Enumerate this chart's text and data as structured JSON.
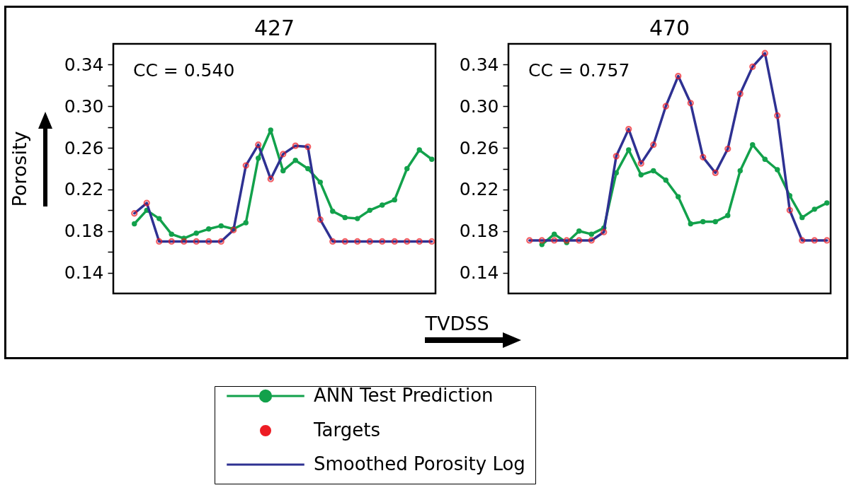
{
  "chart_data": [
    {
      "type": "line",
      "title": "427",
      "ylabel": "Porosity",
      "annotations": [
        "CC = 0.540"
      ],
      "categories": [
        null,
        null,
        null,
        null,
        null,
        null,
        null,
        null,
        null,
        null,
        null,
        null,
        null,
        null,
        null,
        null,
        null,
        null,
        null,
        null,
        null,
        null,
        null,
        null,
        null
      ],
      "series": [
        {
          "name": "ANN Test Prediction",
          "type": "line",
          "marker": "circle",
          "color": "#12a14b",
          "values": [
            0.187,
            0.2,
            0.192,
            0.177,
            0.173,
            0.178,
            0.182,
            0.185,
            0.182,
            0.188,
            0.25,
            0.277,
            0.238,
            0.248,
            0.24,
            0.227,
            0.199,
            0.193,
            0.192,
            0.2,
            0.205,
            0.21,
            0.24,
            0.258,
            0.249
          ]
        },
        {
          "name": "Targets",
          "type": "scatter",
          "marker": "circle",
          "color": "#ed1c24",
          "values": [
            0.197,
            0.207,
            0.17,
            0.17,
            0.17,
            0.17,
            0.17,
            0.17,
            0.181,
            0.243,
            0.263,
            0.23,
            0.254,
            0.262,
            0.261,
            0.191,
            0.17,
            0.17,
            0.17,
            0.17,
            0.17,
            0.17,
            0.17,
            0.17,
            0.17
          ]
        },
        {
          "name": "Smoothed Porosity Log",
          "type": "line",
          "color": "#2e3192",
          "values": [
            0.197,
            0.207,
            0.17,
            0.17,
            0.17,
            0.17,
            0.17,
            0.17,
            0.181,
            0.243,
            0.263,
            0.23,
            0.254,
            0.262,
            0.261,
            0.191,
            0.17,
            0.17,
            0.17,
            0.17,
            0.17,
            0.17,
            0.17,
            0.17,
            0.17
          ]
        }
      ],
      "ylim": [
        0.12,
        0.36
      ],
      "yticks": [
        0.14,
        {
          "value": 0.16,
          "label": null
        },
        0.18,
        {
          "value": 0.2,
          "label": null
        },
        0.22,
        {
          "value": 0.24,
          "label": null
        },
        0.26,
        {
          "value": 0.28,
          "label": null
        },
        {
          "value": 0.3,
          "label": "0.30"
        },
        {
          "value": 0.32,
          "label": null
        },
        0.34
      ],
      "tick_labels": "y",
      "legend": "bottom"
    },
    {
      "type": "line",
      "title": "470",
      "xlabel": "TVDSS",
      "annotations": [
        "CC = 0.757"
      ],
      "categories": [
        null,
        null,
        null,
        null,
        null,
        null,
        null,
        null,
        null,
        null,
        null,
        null,
        null,
        null,
        null,
        null,
        null,
        null,
        null,
        null,
        null,
        null,
        null,
        null,
        null
      ],
      "series": [
        {
          "name": "ANN Test Prediction",
          "type": "line",
          "marker": "circle",
          "color": "#12a14b",
          "values": [
            null,
            0.167,
            0.177,
            0.169,
            0.18,
            0.177,
            0.183,
            0.236,
            0.258,
            0.234,
            0.238,
            0.229,
            0.213,
            0.187,
            0.189,
            0.189,
            0.195,
            0.238,
            0.263,
            0.249,
            0.239,
            0.214,
            0.193,
            0.201,
            0.207
          ]
        },
        {
          "name": "Smoothed Porosity Log",
          "type": "line",
          "color": "#2e3192",
          "values": [
            0.171,
            0.171,
            0.171,
            0.171,
            0.171,
            0.171,
            0.179,
            0.252,
            0.278,
            0.245,
            0.263,
            0.3,
            0.329,
            0.303,
            0.251,
            0.236,
            0.259,
            0.312,
            0.338,
            0.351,
            0.291,
            0.2,
            0.171,
            0.171,
            0.171
          ]
        },
        {
          "name": "Targets",
          "type": "scatter",
          "marker": "circle",
          "color": "#ed1c24",
          "values": [
            0.171,
            0.171,
            0.171,
            0.171,
            0.171,
            0.171,
            0.179,
            0.252,
            0.278,
            0.245,
            0.263,
            0.3,
            0.329,
            0.303,
            0.251,
            0.236,
            0.259,
            0.312,
            0.338,
            0.351,
            0.291,
            0.2,
            0.171,
            0.171,
            0.171
          ]
        }
      ],
      "ylim": [
        0.12,
        0.36
      ],
      "yticks": [
        0.14,
        {
          "value": 0.16,
          "label": null
        },
        0.18,
        {
          "value": 0.2,
          "label": null
        },
        0.22,
        {
          "value": 0.24,
          "label": null
        },
        0.26,
        {
          "value": 0.28,
          "label": null
        },
        {
          "value": 0.3,
          "label": "0.30"
        },
        {
          "value": 0.32,
          "label": null
        },
        0.34
      ],
      "tick_labels": "y",
      "legend": "bottom"
    }
  ]
}
